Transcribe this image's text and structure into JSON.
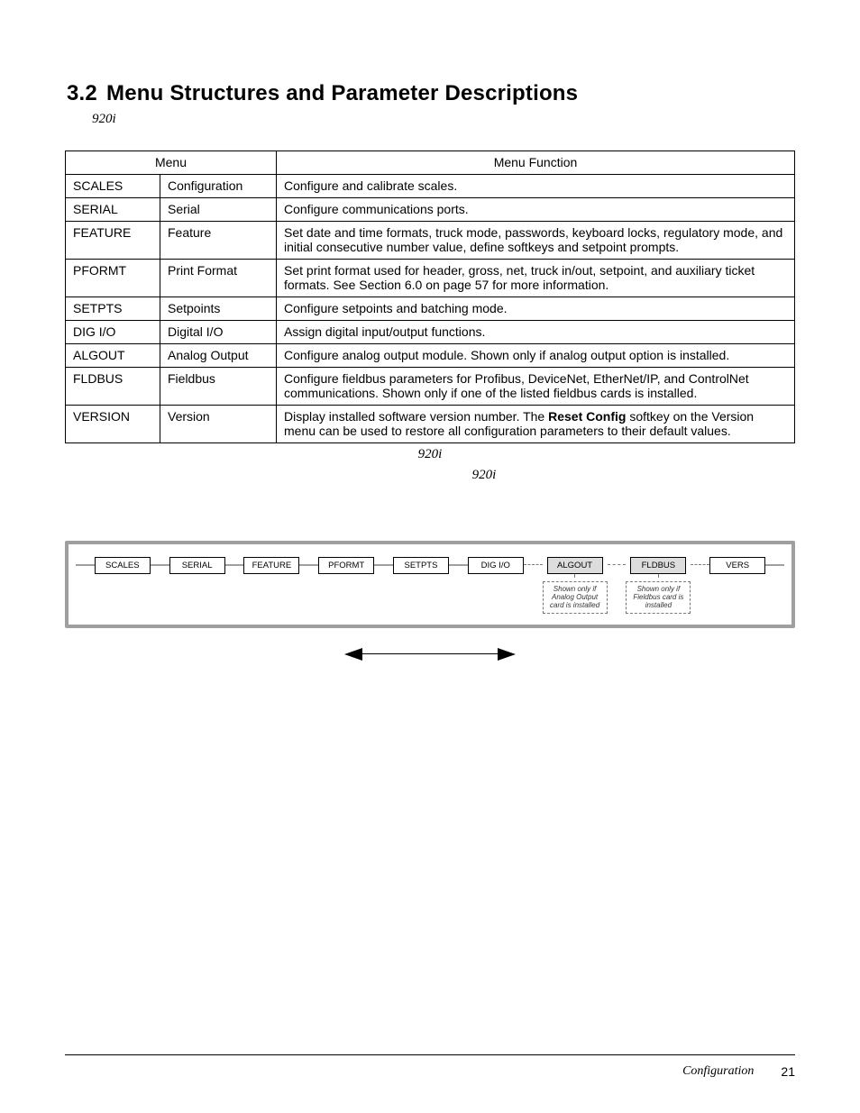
{
  "heading": {
    "num": "3.2",
    "title": "Menu Structures and Parameter Descriptions"
  },
  "subhead": "920i",
  "table": {
    "headers": {
      "menu": "Menu",
      "func": "Menu Function"
    },
    "rows": [
      {
        "code": "SCALES",
        "name": "Configuration",
        "func": "Configure and calibrate scales."
      },
      {
        "code": "SERIAL",
        "name": "Serial",
        "func": "Configure communications ports."
      },
      {
        "code": "FEATURE",
        "name": "Feature",
        "func": "Set date and time formats, truck mode, passwords, keyboard locks, regulatory mode, and initial consecutive number value, define softkeys and setpoint prompts.",
        "justify": true
      },
      {
        "code": "PFORMT",
        "name": "Print Format",
        "func": "Set print format used for header, gross, net, truck in/out, setpoint, and auxiliary ticket formats. See Section 6.0 on page 57 for more information."
      },
      {
        "code": "SETPTS",
        "name": "Setpoints",
        "func": "Configure setpoints and batching mode."
      },
      {
        "code": "DIG I/O",
        "name": "Digital I/O",
        "func": "Assign digital input/output functions."
      },
      {
        "code": "ALGOUT",
        "name": "Analog Output",
        "func": "Configure analog output module. Shown only if analog output option is installed."
      },
      {
        "code": "FLDBUS",
        "name": "Fieldbus",
        "func_html": "Configure fieldbus parameters for Profibus, DeviceNet, EtherNet/IP, and ControlNet communications. Shown only if one of the listed fieldbus cards is installed.",
        "justify": true
      },
      {
        "code": "VERSION",
        "name": "Version",
        "func_html": "Display installed software version number. The <b>Reset Config</b> softkey on the Version menu can be used to restore all configuration parameters to their default values."
      }
    ]
  },
  "caption1": "920i",
  "caption2": "920i",
  "diagram": {
    "nodes": [
      {
        "label": "SCALES",
        "optional": false
      },
      {
        "label": "SERIAL",
        "optional": false
      },
      {
        "label": "FEATURE",
        "optional": false
      },
      {
        "label": "PFORMT",
        "optional": false
      },
      {
        "label": "SETPTS",
        "optional": false
      },
      {
        "label": "DIG I/O",
        "optional": false
      },
      {
        "label": "ALGOUT",
        "optional": true,
        "note": "Shown only if Analog Output card is installed"
      },
      {
        "label": "FLDBUS",
        "optional": true,
        "note": "Shown only if Fieldbus card is installed"
      },
      {
        "label": "VERS",
        "optional": false
      }
    ]
  },
  "footer": {
    "label": "Configuration",
    "page": "21"
  }
}
